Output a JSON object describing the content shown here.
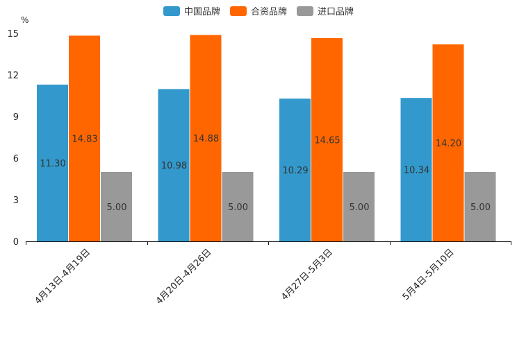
{
  "chart_data": {
    "type": "bar",
    "title": "",
    "unit_label": "%",
    "xlabel": "",
    "ylabel": "%",
    "ylim": [
      0,
      15
    ],
    "yticks": [
      0,
      3,
      6,
      9,
      12,
      15
    ],
    "categories": [
      "4月13日-4月19日",
      "4月20日-4月26日",
      "4月27日-5月3日",
      "5月4日-5月10日"
    ],
    "series": [
      {
        "name": "中国品牌",
        "color": "#3399cc",
        "values": [
          11.3,
          10.98,
          10.29,
          10.34
        ],
        "labels": [
          "11.30",
          "10.98",
          "10.29",
          "10.34"
        ]
      },
      {
        "name": "合资品牌",
        "color": "#ff6600",
        "values": [
          14.83,
          14.88,
          14.65,
          14.2
        ],
        "labels": [
          "14.83",
          "14.88",
          "14.65",
          "14.20"
        ]
      },
      {
        "name": "进口品牌",
        "color": "#999999",
        "values": [
          5.0,
          5.0,
          5.0,
          5.0
        ],
        "labels": [
          "5.00",
          "5.00",
          "5.00",
          "5.00"
        ]
      }
    ],
    "legend_position": "top-center",
    "grid": false
  }
}
